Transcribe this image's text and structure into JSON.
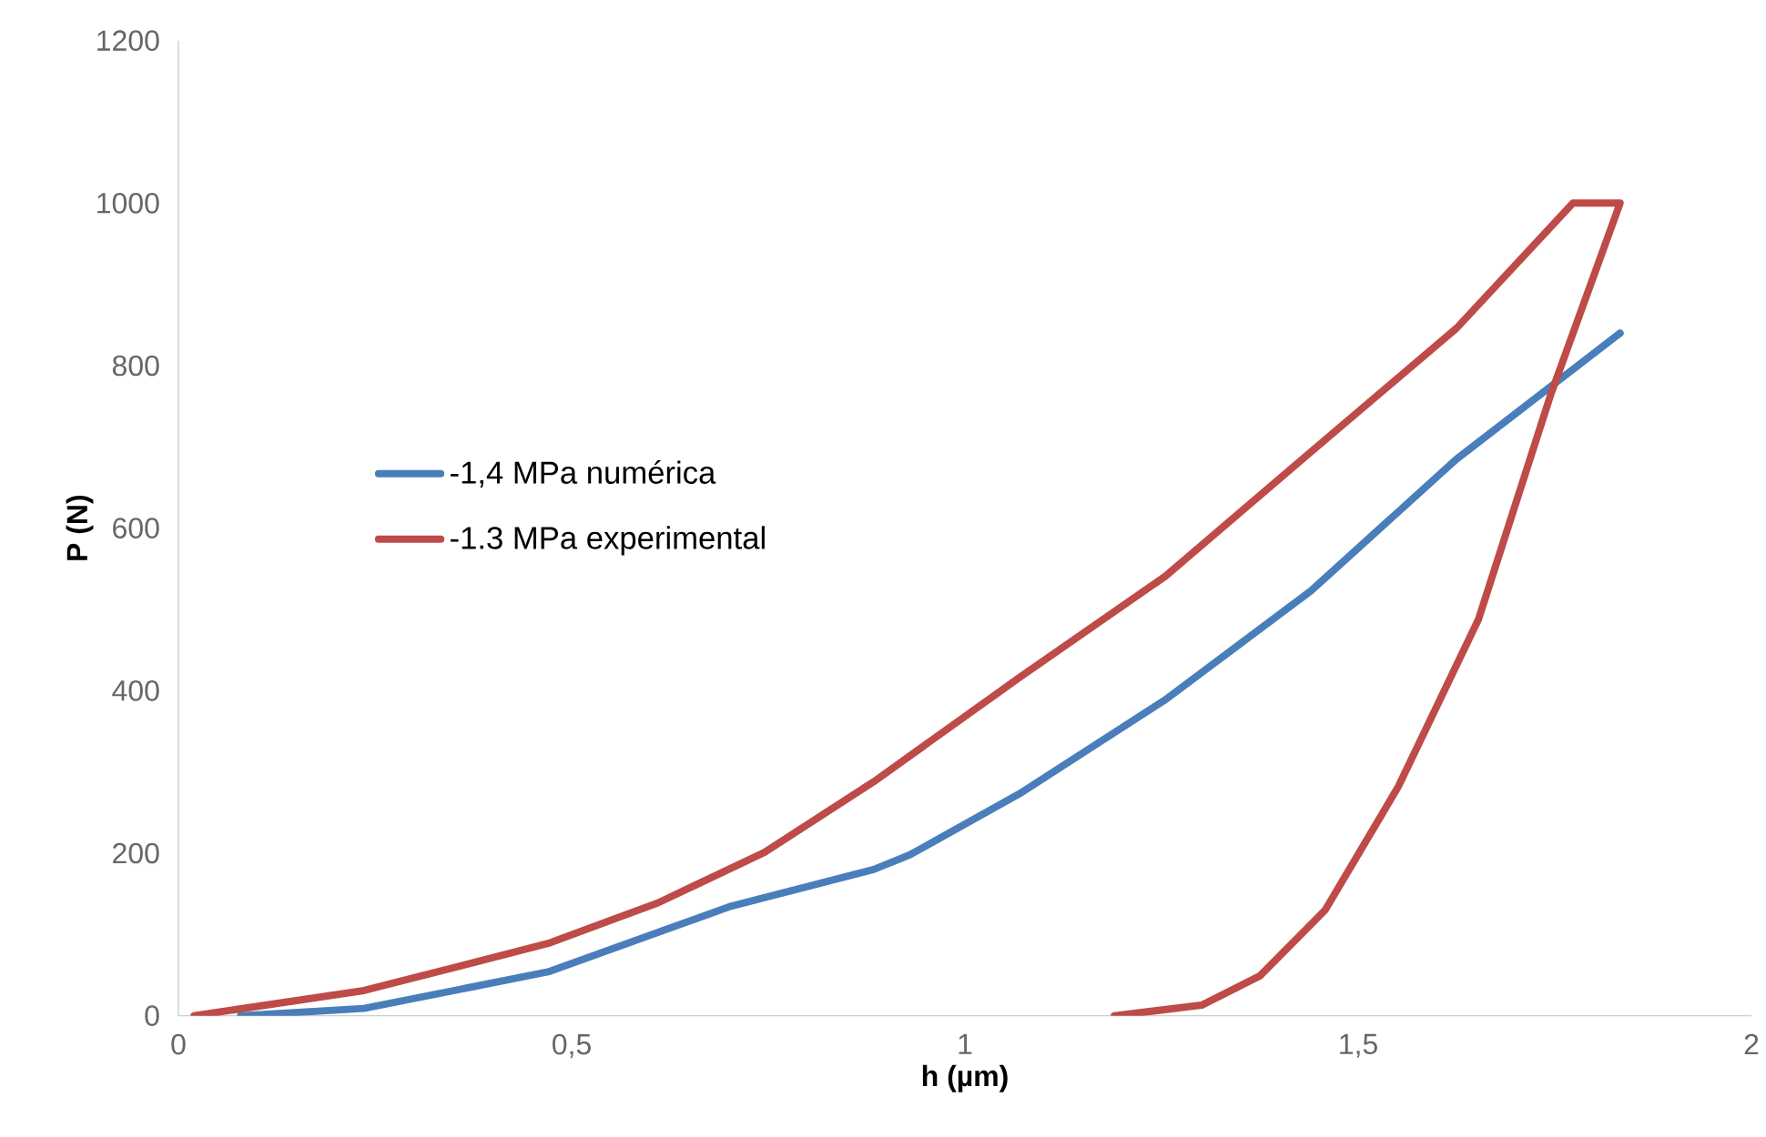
{
  "chart_data": {
    "type": "line",
    "xlabel": "h (µm)",
    "ylabel": "P (N)",
    "xlim": [
      0,
      2
    ],
    "ylim": [
      0,
      1200
    ],
    "xticks": [
      0,
      {
        "value": 0.5,
        "label": "0,5"
      },
      1,
      {
        "value": 1.5,
        "label": "1,5"
      },
      2
    ],
    "yticks": [
      0,
      200,
      400,
      600,
      800,
      1000,
      1200
    ],
    "grid": false,
    "legend": "left",
    "marker": "none",
    "line_style": "solid",
    "series": [
      {
        "name": "-1,4 MPa numérica",
        "color": "#4a7ebb",
        "x": [
          0.079,
          0.236,
          0.47,
          0.7,
          0.884,
          0.93,
          1.069,
          1.255,
          1.44,
          1.625,
          1.833
        ],
        "values": [
          0,
          9,
          54,
          134,
          180,
          198,
          273,
          389,
          523,
          685,
          840
        ]
      },
      {
        "name": "-1.3 MPa experimental",
        "color": "#be4b48",
        "x": [
          0.02,
          0.236,
          0.47,
          0.61,
          0.745,
          0.884,
          1.069,
          1.255,
          1.44,
          1.625,
          1.773,
          1.833,
          1.745,
          1.653,
          1.551,
          1.458,
          1.375,
          1.301,
          1.19
        ],
        "values": [
          0,
          31,
          89,
          139,
          201,
          288,
          416,
          541,
          694,
          846,
          1000,
          1000,
          765,
          488,
          282,
          130,
          49,
          13,
          0
        ]
      }
    ]
  }
}
